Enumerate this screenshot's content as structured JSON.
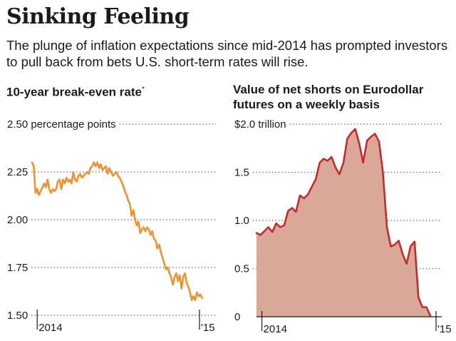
{
  "header": {
    "title": "Sinking Feeling",
    "subtitle": "The plunge of inflation expectations since mid-2014 has prompted investors to pull back from bets U.S. short-term rates will rise."
  },
  "colors": {
    "left_line": "#f2912e",
    "right_line": "#c62b2b",
    "right_fill": "#d9a898",
    "grid": "#555555",
    "axis": "#1a1a1a"
  },
  "chart_data": [
    {
      "type": "line",
      "title": "10-year break-even rate",
      "title_marker": "*",
      "unit_label": "percentage points",
      "ylim": [
        1.5,
        2.5
      ],
      "yticks": [
        {
          "value": 2.5,
          "label": "2.50 percentage points"
        },
        {
          "value": 2.25,
          "label": "2.25"
        },
        {
          "value": 2.0,
          "label": "2.00"
        },
        {
          "value": 1.75,
          "label": "1.75"
        },
        {
          "value": 1.5,
          "label": "1.50"
        }
      ],
      "xlim": [
        0,
        1
      ],
      "xticks": [
        {
          "value": 0.03,
          "label": "2014"
        },
        {
          "value": 0.975,
          "label": "'15"
        }
      ],
      "x": [
        0.0,
        0.01,
        0.02,
        0.03,
        0.04,
        0.055,
        0.07,
        0.08,
        0.09,
        0.1,
        0.11,
        0.12,
        0.13,
        0.14,
        0.15,
        0.16,
        0.17,
        0.18,
        0.19,
        0.2,
        0.21,
        0.22,
        0.23,
        0.24,
        0.25,
        0.26,
        0.27,
        0.28,
        0.29,
        0.3,
        0.31,
        0.32,
        0.33,
        0.34,
        0.35,
        0.36,
        0.37,
        0.38,
        0.39,
        0.4,
        0.41,
        0.42,
        0.43,
        0.44,
        0.45,
        0.46,
        0.47,
        0.48,
        0.49,
        0.5,
        0.51,
        0.52,
        0.53,
        0.54,
        0.55,
        0.56,
        0.57,
        0.58,
        0.59,
        0.6,
        0.61,
        0.62,
        0.63,
        0.64,
        0.65,
        0.66,
        0.67,
        0.68,
        0.69,
        0.7,
        0.71,
        0.72,
        0.73,
        0.74,
        0.75,
        0.76,
        0.77,
        0.78,
        0.79,
        0.8,
        0.81,
        0.82,
        0.83,
        0.84,
        0.85,
        0.86,
        0.87,
        0.88,
        0.89,
        0.9,
        0.91,
        0.92,
        0.93,
        0.94,
        0.95,
        0.96,
        0.97,
        0.98,
        0.99
      ],
      "values": [
        2.3,
        2.28,
        2.14,
        2.16,
        2.13,
        2.16,
        2.19,
        2.17,
        2.21,
        2.16,
        2.14,
        2.16,
        2.15,
        2.16,
        2.2,
        2.21,
        2.16,
        2.21,
        2.19,
        2.22,
        2.2,
        2.21,
        2.19,
        2.25,
        2.21,
        2.2,
        2.23,
        2.24,
        2.22,
        2.23,
        2.24,
        2.25,
        2.24,
        2.27,
        2.28,
        2.3,
        2.28,
        2.3,
        2.27,
        2.29,
        2.26,
        2.27,
        2.28,
        2.24,
        2.27,
        2.25,
        2.23,
        2.24,
        2.25,
        2.23,
        2.22,
        2.2,
        2.18,
        2.15,
        2.13,
        2.1,
        2.08,
        2.02,
        2.05,
        2.0,
        1.97,
        1.99,
        1.93,
        1.95,
        1.96,
        1.94,
        1.96,
        1.95,
        1.92,
        1.94,
        1.9,
        1.89,
        1.85,
        1.87,
        1.83,
        1.8,
        1.77,
        1.74,
        1.75,
        1.72,
        1.7,
        1.66,
        1.7,
        1.72,
        1.68,
        1.71,
        1.64,
        1.7,
        1.72,
        1.67,
        1.65,
        1.62,
        1.58,
        1.6,
        1.58,
        1.62,
        1.6,
        1.61,
        1.59
      ]
    },
    {
      "type": "area",
      "title": "Value of net shorts on Eurodollar futures on a weekly basis",
      "unit_label": "trillion",
      "ylim": [
        0,
        2.0
      ],
      "yticks": [
        {
          "value": 2.0,
          "label": "$2.0 trillion"
        },
        {
          "value": 1.5,
          "label": "1.5"
        },
        {
          "value": 1.0,
          "label": "1.0"
        },
        {
          "value": 0.5,
          "label": "0.5"
        },
        {
          "value": 0,
          "label": "0"
        }
      ],
      "xlim": [
        0,
        1
      ],
      "xticks": [
        {
          "value": 0.03,
          "label": "2014"
        },
        {
          "value": 1.0,
          "label": "'15"
        }
      ],
      "x": [
        0.0,
        0.022,
        0.044,
        0.066,
        0.088,
        0.11,
        0.132,
        0.154,
        0.176,
        0.198,
        0.22,
        0.242,
        0.264,
        0.286,
        0.308,
        0.33,
        0.352,
        0.374,
        0.396,
        0.418,
        0.44,
        0.462,
        0.484,
        0.506,
        0.528,
        0.55,
        0.572,
        0.594,
        0.616,
        0.638,
        0.66,
        0.682,
        0.704,
        0.726,
        0.748,
        0.77,
        0.792,
        0.814,
        0.836,
        0.858,
        0.88,
        0.902,
        0.924,
        0.946,
        0.968
      ],
      "values": [
        0.87,
        0.85,
        0.89,
        0.93,
        0.88,
        0.97,
        0.93,
        0.95,
        1.1,
        1.13,
        1.09,
        1.26,
        1.23,
        1.27,
        1.35,
        1.43,
        1.6,
        1.64,
        1.62,
        1.66,
        1.55,
        1.48,
        1.6,
        1.85,
        1.91,
        1.95,
        1.8,
        1.6,
        1.83,
        1.87,
        1.9,
        1.82,
        1.5,
        0.93,
        0.73,
        0.75,
        0.79,
        0.65,
        0.55,
        0.73,
        0.78,
        0.2,
        0.1,
        0.1,
        0.01
      ]
    }
  ]
}
